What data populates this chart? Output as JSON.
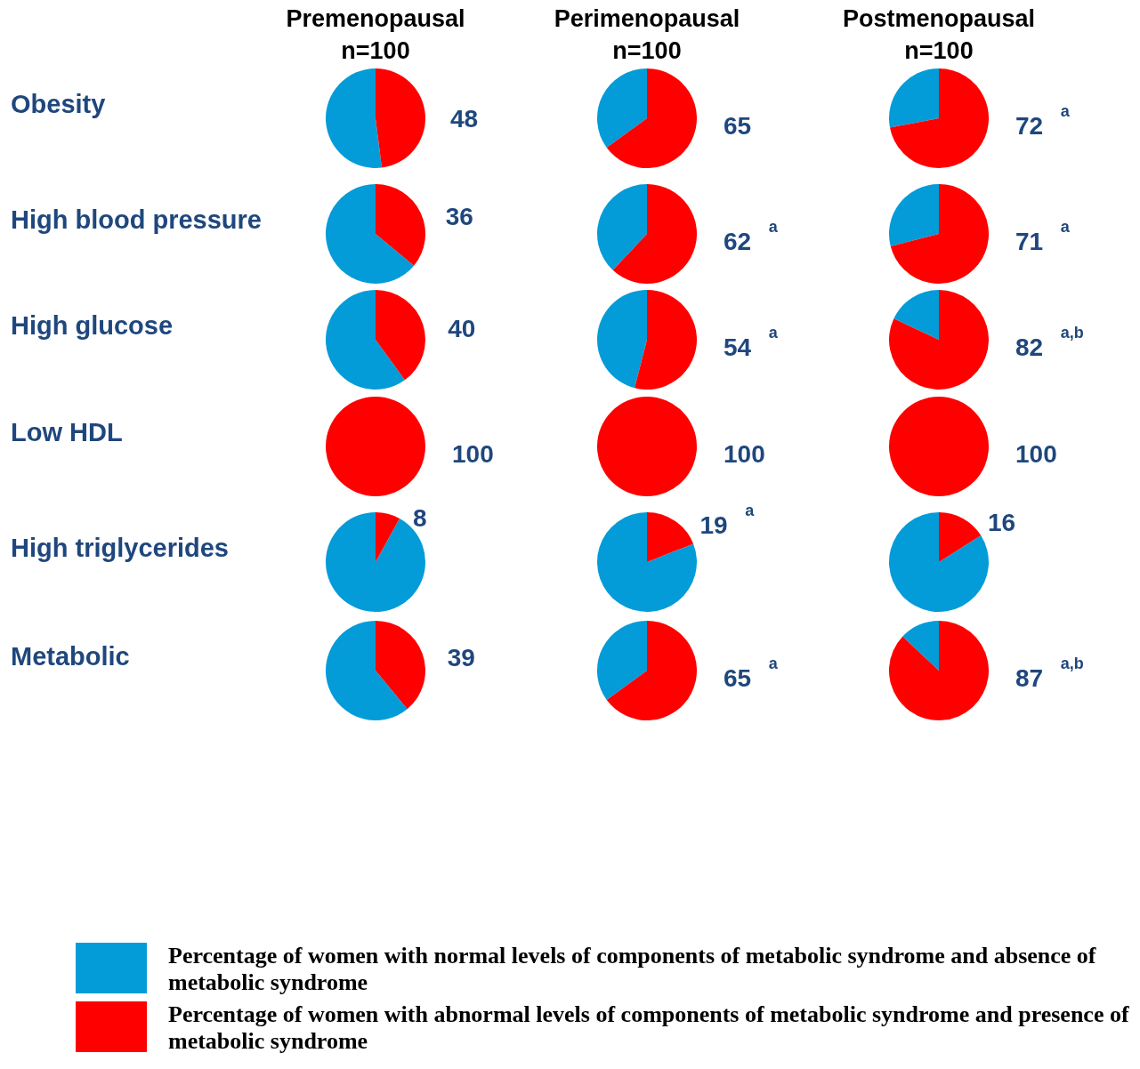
{
  "chart_data": [
    {
      "type": "pie",
      "title": "Premenopausal",
      "subtitle": "n=100",
      "ylabel": "Obesity",
      "categories": [
        "Percentage of women with normal levels of components of metabolic syndrome and absence  of  metabolic syndrome",
        "Percentage of women with abnormal levels of components of metabolic syndrome  and presence of  metabolic syndrome"
      ],
      "values": [
        52,
        48
      ],
      "colors": [
        "#039cd8",
        "#ff0000"
      ],
      "value_labels": [
        null,
        "48"
      ],
      "legend": "bottom"
    },
    {
      "type": "pie",
      "title": "Perimenopausal",
      "subtitle": "n=100",
      "categories": [
        null,
        null
      ],
      "values": [
        35,
        65
      ],
      "colors": [
        "#039cd8",
        "#ff0000"
      ],
      "value_labels": [
        null,
        "65"
      ]
    },
    {
      "type": "pie",
      "title": "Postmenopausal",
      "subtitle": "n=100",
      "categories": [
        null,
        null
      ],
      "values": [
        28,
        72
      ],
      "colors": [
        "#039cd8",
        "#ff0000"
      ],
      "value_labels": [
        null,
        "72 $^{a}$"
      ]
    },
    {
      "type": "pie",
      "ylabel": "High blood pressure",
      "categories": [
        null,
        null
      ],
      "values": [
        64,
        36
      ],
      "colors": [
        "#039cd8",
        "#ff0000"
      ],
      "value_labels": [
        null,
        "36"
      ]
    },
    {
      "type": "pie",
      "categories": [
        null,
        null
      ],
      "values": [
        38,
        62
      ],
      "colors": [
        "#039cd8",
        "#ff0000"
      ],
      "value_labels": [
        null,
        "62 $^{a}$"
      ]
    },
    {
      "type": "pie",
      "categories": [
        null,
        null
      ],
      "values": [
        29,
        71
      ],
      "colors": [
        "#039cd8",
        "#ff0000"
      ],
      "value_labels": [
        null,
        "71 $^{a}$"
      ]
    },
    {
      "type": "pie",
      "ylabel": "High glucose",
      "categories": [
        null,
        null
      ],
      "values": [
        60,
        40
      ],
      "colors": [
        "#039cd8",
        "#ff0000"
      ],
      "value_labels": [
        null,
        "40"
      ]
    },
    {
      "type": "pie",
      "categories": [
        null,
        null
      ],
      "values": [
        46,
        54
      ],
      "colors": [
        "#039cd8",
        "#ff0000"
      ],
      "value_labels": [
        null,
        "54 $^{a}$"
      ]
    },
    {
      "type": "pie",
      "categories": [
        null,
        null
      ],
      "values": [
        18,
        82
      ],
      "colors": [
        "#039cd8",
        "#ff0000"
      ],
      "value_labels": [
        null,
        "82 $^{a,b}$"
      ]
    },
    {
      "type": "pie",
      "ylabel": "Low HDL",
      "categories": [
        null,
        null
      ],
      "values": [
        0,
        100
      ],
      "colors": [
        "#039cd8",
        "#ff0000"
      ],
      "value_labels": [
        null,
        "100"
      ]
    },
    {
      "type": "pie",
      "categories": [
        null,
        null
      ],
      "values": [
        0,
        100
      ],
      "colors": [
        "#039cd8",
        "#ff0000"
      ],
      "value_labels": [
        null,
        "100"
      ]
    },
    {
      "type": "pie",
      "categories": [
        null,
        null
      ],
      "values": [
        0,
        100
      ],
      "colors": [
        "#039cd8",
        "#ff0000"
      ],
      "value_labels": [
        null,
        "100"
      ]
    },
    {
      "type": "pie",
      "ylabel": "High triglycerides",
      "categories": [
        null,
        null
      ],
      "values": [
        92,
        8
      ],
      "colors": [
        "#039cd8",
        "#ff0000"
      ],
      "value_labels": [
        null,
        "8"
      ]
    },
    {
      "type": "pie",
      "categories": [
        null,
        null
      ],
      "values": [
        81,
        19
      ],
      "colors": [
        "#039cd8",
        "#ff0000"
      ],
      "value_labels": [
        null,
        "19 $^{a}$"
      ]
    },
    {
      "type": "pie",
      "categories": [
        null,
        null
      ],
      "values": [
        84,
        16
      ],
      "colors": [
        "#039cd8",
        "#ff0000"
      ],
      "value_labels": [
        null,
        "16"
      ]
    },
    {
      "type": "pie",
      "ylabel": "Metabolic",
      "categories": [
        null,
        null
      ],
      "values": [
        61,
        39
      ],
      "colors": [
        "#039cd8",
        "#ff0000"
      ],
      "value_labels": [
        null,
        "39"
      ]
    },
    {
      "type": "pie",
      "categories": [
        null,
        null
      ],
      "values": [
        35,
        65
      ],
      "colors": [
        "#039cd8",
        "#ff0000"
      ],
      "value_labels": [
        null,
        "65 $^{a}$"
      ]
    },
    {
      "type": "pie",
      "categories": [
        null,
        null
      ],
      "values": [
        13,
        87
      ],
      "colors": [
        "#039cd8",
        "#ff0000"
      ],
      "value_labels": [
        null,
        "87 $^{a,b}$"
      ]
    }
  ]
}
